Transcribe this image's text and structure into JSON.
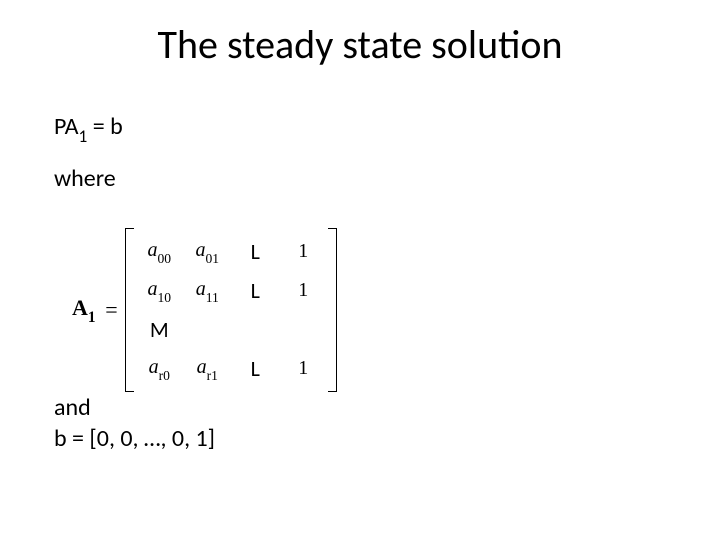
{
  "title": "The steady state solution",
  "line_eq_prefix": "PA",
  "line_eq_sub": "1",
  "line_eq_suffix": " = b",
  "where": "where",
  "matrix": {
    "label_main": "A",
    "label_sub": "1",
    "equals": "=",
    "rows": [
      [
        {
          "var": "a",
          "sub": "00"
        },
        {
          "var": "a",
          "sub": "01"
        },
        {
          "plain": "L"
        },
        {
          "num": "1"
        }
      ],
      [
        {
          "var": "a",
          "sub": "10"
        },
        {
          "var": "a",
          "sub": "11"
        },
        {
          "plain": "L"
        },
        {
          "num": "1"
        }
      ],
      [
        {
          "plain": "M"
        },
        {
          "plain": ""
        },
        {
          "plain": ""
        },
        {
          "plain": ""
        }
      ],
      [
        {
          "var": "a",
          "sub": "r0"
        },
        {
          "var": "a",
          "sub": "r1"
        },
        {
          "plain": "L"
        },
        {
          "num": "1"
        }
      ]
    ]
  },
  "and": "and",
  "b_line": "b = [0, 0, …, 0, 1]"
}
